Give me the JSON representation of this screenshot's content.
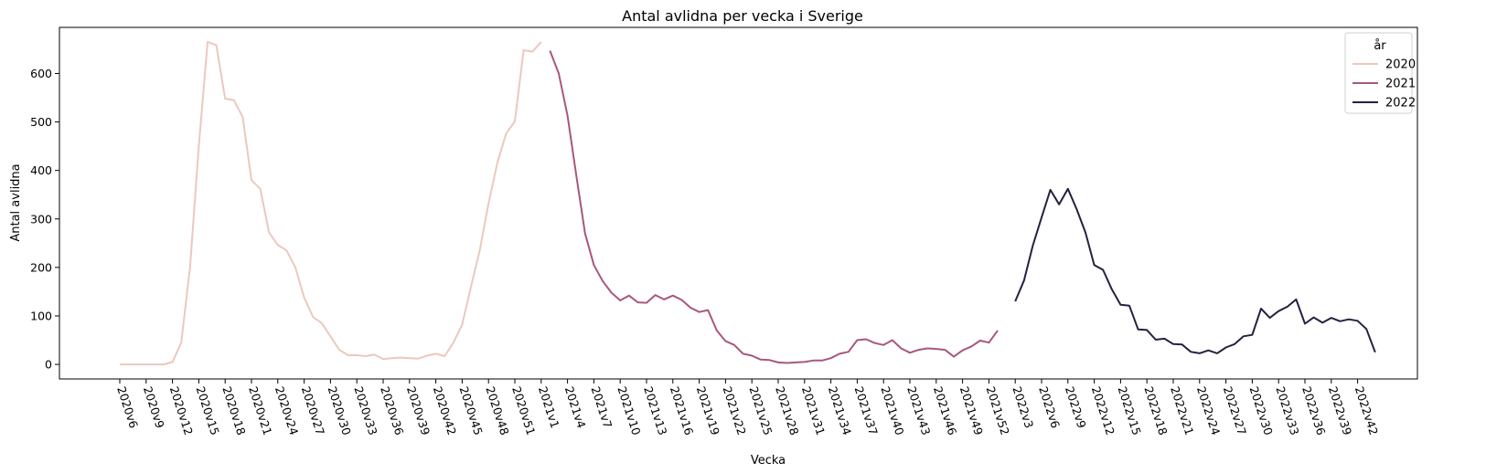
{
  "chart_data": {
    "type": "line",
    "title": "Antal avlidna per vecka i Sverige",
    "xlabel": "Vecka",
    "ylabel": "Antal avlidna",
    "ylim": [
      -30,
      695
    ],
    "yticks": [
      0,
      100,
      200,
      300,
      400,
      500,
      600
    ],
    "grid": false,
    "legend": {
      "title": "år",
      "placement": "top-right"
    },
    "x_tick_labels": [
      "2020v6",
      "2020v9",
      "2020v12",
      "2020v15",
      "2020v18",
      "2020v21",
      "2020v24",
      "2020v27",
      "2020v30",
      "2020v33",
      "2020v36",
      "2020v39",
      "2020v42",
      "2020v45",
      "2020v48",
      "2020v51",
      "2021v1",
      "2021v4",
      "2021v7",
      "2021v10",
      "2021v13",
      "2021v16",
      "2021v19",
      "2021v22",
      "2021v25",
      "2021v28",
      "2021v31",
      "2021v34",
      "2021v37",
      "2021v40",
      "2021v43",
      "2021v46",
      "2021v49",
      "2021v52",
      "2022v3",
      "2022v6",
      "2022v9",
      "2022v12",
      "2022v15",
      "2022v18",
      "2022v21",
      "2022v24",
      "2022v27",
      "2022v30",
      "2022v33",
      "2022v36",
      "2022v39",
      "2022v42"
    ],
    "series": [
      {
        "name": "2020",
        "color": "#ecc8bd",
        "start_index": 0,
        "values": [
          0,
          0,
          0,
          0,
          0,
          0,
          5,
          45,
          200,
          450,
          665,
          658,
          548,
          545,
          510,
          380,
          362,
          272,
          246,
          235,
          200,
          138,
          98,
          85,
          58,
          30,
          19,
          19,
          17,
          20,
          11,
          13,
          14,
          13,
          12,
          18,
          22,
          17,
          45,
          82,
          160,
          235,
          332,
          415,
          476,
          501,
          648,
          645,
          665
        ]
      },
      {
        "name": "2021",
        "color": "#a8577c",
        "start_index": 49,
        "values": [
          647,
          600,
          513,
          390,
          270,
          205,
          172,
          148,
          132,
          142,
          128,
          127,
          143,
          134,
          142,
          133,
          117,
          108,
          112,
          70,
          48,
          40,
          22,
          18,
          10,
          9,
          4,
          3,
          4,
          5,
          8,
          8,
          13,
          22,
          26,
          50,
          52,
          44,
          40,
          50,
          33,
          24,
          30,
          33,
          32,
          30,
          16,
          29,
          37,
          49,
          45,
          70
        ]
      },
      {
        "name": "2022",
        "color": "#27203f",
        "start_index": 102,
        "values": [
          130,
          173,
          245,
          303,
          360,
          330,
          362,
          320,
          272,
          205,
          195,
          155,
          123,
          121,
          72,
          71,
          51,
          53,
          42,
          41,
          26,
          23,
          29,
          23,
          35,
          42,
          58,
          61,
          115,
          96,
          110,
          119,
          134,
          84,
          97,
          86,
          96,
          89,
          93,
          90,
          73,
          25
        ]
      }
    ]
  }
}
